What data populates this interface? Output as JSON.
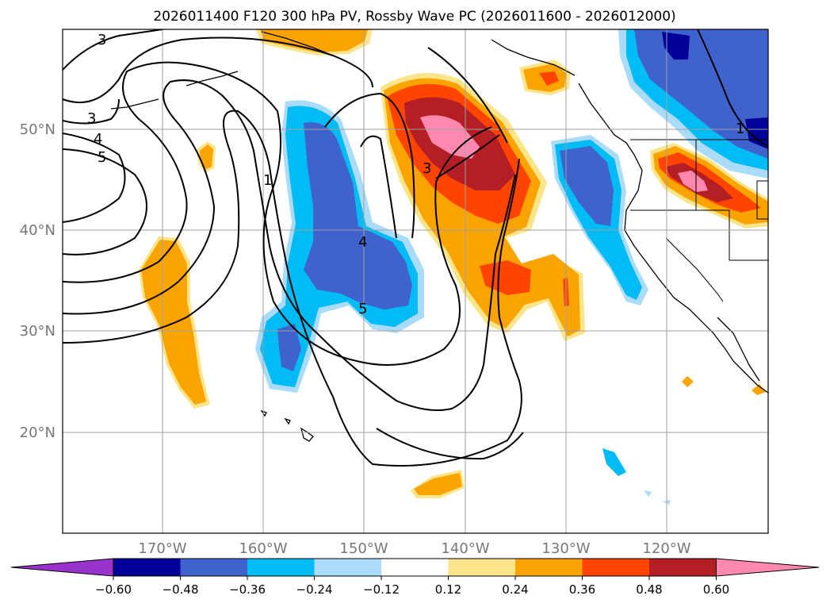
{
  "title": "2026011400 F120 300 hPa PV, Rossby Wave PC (2026011600 - 2026012000)",
  "lat_labels": [
    "50°N",
    "40°N",
    "30°N",
    "20°N"
  ],
  "lon_labels": [
    "170°W",
    "160°W",
    "150°W",
    "140°W",
    "130°W",
    "120°W"
  ],
  "colorbar": {
    "ticks": [
      "−0.60",
      "−0.48",
      "−0.36",
      "−0.24",
      "−0.12",
      "0.12",
      "0.24",
      "0.36",
      "0.48",
      "0.60"
    ],
    "colors": [
      "#9933cc",
      "#000099",
      "#3f62cc",
      "#00bbf4",
      "#aadcfa",
      "#ffffff",
      "#fbe58a",
      "#fba300",
      "#ff4400",
      "#b31f25",
      "#ff89ae"
    ]
  },
  "contour_labels": [
    "3",
    "3",
    "4",
    "5",
    "1",
    "4",
    "5",
    "3",
    "1"
  ]
}
